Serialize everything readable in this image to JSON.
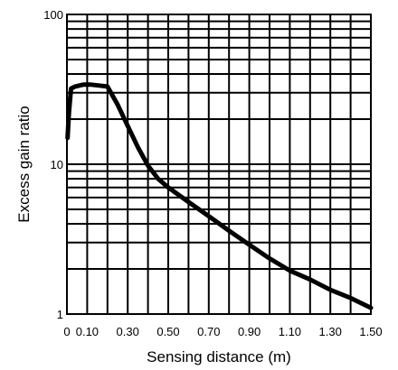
{
  "chart_data": {
    "type": "line",
    "xlabel": "Sensing distance (m)",
    "ylabel": "Excess gain ratio",
    "xlim": [
      0,
      1.5
    ],
    "ylim": [
      1,
      100
    ],
    "y_scale": "log",
    "grid": true,
    "x_ticks": [
      {
        "value": 0,
        "label": "0"
      },
      {
        "value": 0.1,
        "label": "0.10"
      },
      {
        "value": 0.3,
        "label": "0.30"
      },
      {
        "value": 0.5,
        "label": "0.50"
      },
      {
        "value": 0.7,
        "label": "0.70"
      },
      {
        "value": 0.9,
        "label": "0.90"
      },
      {
        "value": 1.1,
        "label": "1.10"
      },
      {
        "value": 1.3,
        "label": "1.30"
      },
      {
        "value": 1.5,
        "label": "1.50"
      }
    ],
    "y_ticks": [
      {
        "value": 1,
        "label": "1"
      },
      {
        "value": 10,
        "label": "10"
      },
      {
        "value": 100,
        "label": "100"
      }
    ],
    "series": [
      {
        "x": [
          0.003,
          0.01,
          0.02,
          0.04,
          0.08,
          0.12,
          0.16,
          0.2,
          0.25,
          0.3,
          0.35,
          0.4,
          0.45,
          0.5,
          0.6,
          0.7,
          0.8,
          0.9,
          1.0,
          1.1,
          1.2,
          1.3,
          1.4,
          1.5
        ],
        "y": [
          15,
          22,
          32,
          33,
          34,
          34,
          33.5,
          33,
          25,
          18,
          13,
          9.8,
          8.0,
          7.0,
          5.6,
          4.5,
          3.6,
          2.9,
          2.35,
          1.95,
          1.7,
          1.45,
          1.28,
          1.1
        ]
      }
    ]
  }
}
